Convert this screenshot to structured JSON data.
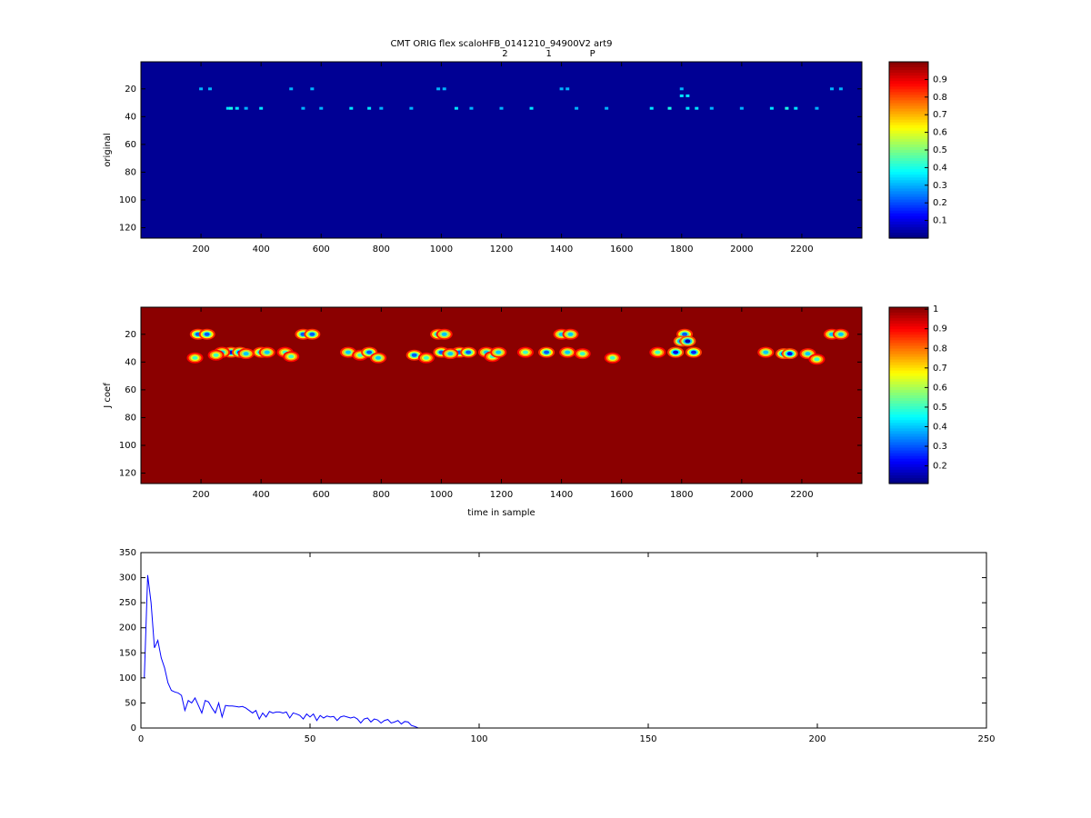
{
  "chart_data": [
    {
      "type": "heatmap",
      "title": "CMT ORIG flex scaloHFB_0141210_94900V2 art9",
      "annotations": [
        {
          "text": "2",
          "x": 1212
        },
        {
          "text": "1",
          "x": 1358
        },
        {
          "text": "P",
          "x": 1503
        }
      ],
      "ylabel": "original",
      "xlim": [
        0,
        2400
      ],
      "ylim": [
        0.5,
        127.5
      ],
      "xticks": [
        200,
        400,
        600,
        800,
        1000,
        1200,
        1400,
        1600,
        1800,
        2000,
        2200
      ],
      "yticks": [
        20,
        40,
        60,
        80,
        100,
        120
      ],
      "clim": [
        0,
        1
      ],
      "cticks": [
        0.1,
        0.2,
        0.3,
        0.4,
        0.5,
        0.6,
        0.7,
        0.8,
        0.9
      ],
      "background": 0.02,
      "spots": {
        "x": [
          200,
          230,
          290,
          300,
          320,
          350,
          400,
          500,
          540,
          570,
          600,
          700,
          760,
          800,
          900,
          990,
          1010,
          1050,
          1100,
          1200,
          1300,
          1400,
          1420,
          1450,
          1550,
          1700,
          1760,
          1800,
          1820,
          1850,
          1900,
          2000,
          2100,
          2150,
          2180,
          2250,
          2300,
          2330,
          1800,
          1820
        ],
        "y": [
          20,
          20,
          34,
          34,
          34,
          34,
          34,
          20,
          34,
          20,
          34,
          34,
          34,
          34,
          34,
          20,
          20,
          34,
          34,
          34,
          34,
          20,
          20,
          34,
          34,
          34,
          34,
          20,
          34,
          34,
          34,
          34,
          34,
          34,
          34,
          34,
          20,
          20,
          25,
          25
        ],
        "values": [
          0.3,
          0.3,
          0.35,
          0.4,
          0.35,
          0.3,
          0.35,
          0.3,
          0.3,
          0.3,
          0.3,
          0.35,
          0.35,
          0.3,
          0.3,
          0.3,
          0.3,
          0.35,
          0.3,
          0.3,
          0.35,
          0.3,
          0.3,
          0.3,
          0.3,
          0.35,
          0.4,
          0.3,
          0.35,
          0.35,
          0.3,
          0.3,
          0.35,
          0.4,
          0.35,
          0.3,
          0.3,
          0.3,
          0.35,
          0.35
        ]
      }
    },
    {
      "type": "heatmap",
      "ylabel": "J coef",
      "xlabel": "time in sample",
      "xlim": [
        0,
        2400
      ],
      "ylim": [
        0.5,
        127.5
      ],
      "xticks": [
        200,
        400,
        600,
        800,
        1000,
        1200,
        1400,
        1600,
        1800,
        2000,
        2200
      ],
      "yticks": [
        20,
        40,
        60,
        80,
        100,
        120
      ],
      "clim": [
        0.11,
        1.01
      ],
      "cticks": [
        0.2,
        0.3,
        0.4,
        0.5,
        0.6,
        0.7,
        0.8,
        0.9,
        1
      ],
      "background": 1,
      "spots": {
        "x": [
          190,
          220,
          180,
          300,
          330,
          270,
          250,
          350,
          400,
          420,
          480,
          500,
          540,
          570,
          690,
          730,
          760,
          790,
          910,
          950,
          990,
          1010,
          1000,
          1060,
          1090,
          1030,
          1150,
          1170,
          1190,
          1280,
          1350,
          1400,
          1430,
          1420,
          1470,
          1570,
          1720,
          1780,
          1810,
          1800,
          1820,
          1840,
          2080,
          2140,
          2160,
          2220,
          2250,
          2300,
          2330
        ],
        "y": [
          20,
          20,
          37,
          33,
          33,
          33,
          35,
          34,
          33,
          33,
          33,
          36,
          20,
          20,
          33,
          35,
          33,
          37,
          35,
          37,
          20,
          20,
          33,
          33,
          33,
          34,
          33,
          36,
          33,
          33,
          33,
          20,
          20,
          33,
          34,
          37,
          33,
          33,
          20,
          25,
          25,
          33,
          33,
          34,
          34,
          34,
          38,
          20,
          20
        ],
        "values": [
          0.3,
          0.3,
          0.5,
          0.2,
          0.2,
          0.4,
          0.5,
          0.4,
          0.3,
          0.4,
          0.5,
          0.5,
          0.3,
          0.3,
          0.4,
          0.5,
          0.3,
          0.4,
          0.3,
          0.5,
          0.3,
          0.4,
          0.3,
          0.3,
          0.3,
          0.4,
          0.4,
          0.5,
          0.4,
          0.5,
          0.3,
          0.4,
          0.4,
          0.4,
          0.5,
          0.5,
          0.5,
          0.2,
          0.3,
          0.15,
          0.15,
          0.25,
          0.4,
          0.2,
          0.2,
          0.4,
          0.5,
          0.4,
          0.4
        ]
      }
    },
    {
      "type": "line",
      "color": "#0000ff",
      "xlim": [
        0,
        250
      ],
      "ylim": [
        0,
        350
      ],
      "xticks": [
        0,
        50,
        100,
        150,
        200,
        250
      ],
      "yticks": [
        0,
        50,
        100,
        150,
        200,
        250,
        300,
        350
      ],
      "x": [
        1,
        2,
        3,
        4,
        5,
        6,
        7,
        8,
        9,
        10,
        11,
        12,
        13,
        14,
        15,
        16,
        17,
        18,
        19,
        20,
        21,
        22,
        23,
        24,
        25,
        26,
        27,
        28,
        29,
        30,
        31,
        32,
        33,
        34,
        35,
        36,
        37,
        38,
        39,
        40,
        41,
        42,
        43,
        44,
        45,
        46,
        47,
        48,
        49,
        50,
        51,
        52,
        53,
        54,
        55,
        56,
        57,
        58,
        59,
        60,
        61,
        62,
        63,
        64,
        65,
        66,
        67,
        68,
        69,
        70,
        71,
        72,
        73,
        74,
        75,
        76,
        77,
        78,
        79,
        80,
        81,
        82
      ],
      "values": [
        100,
        305,
        250,
        160,
        175,
        140,
        120,
        90,
        75,
        72,
        70,
        65,
        35,
        55,
        50,
        60,
        45,
        30,
        55,
        52,
        40,
        30,
        50,
        22,
        45,
        44,
        44,
        43,
        42,
        43,
        40,
        35,
        30,
        35,
        18,
        30,
        22,
        33,
        30,
        32,
        32,
        30,
        32,
        20,
        30,
        28,
        25,
        18,
        28,
        22,
        28,
        15,
        25,
        20,
        24,
        22,
        23,
        15,
        22,
        24,
        22,
        20,
        22,
        18,
        10,
        18,
        20,
        12,
        18,
        16,
        10,
        15,
        17,
        10,
        12,
        15,
        8,
        13,
        12,
        5,
        3,
        0
      ]
    }
  ]
}
